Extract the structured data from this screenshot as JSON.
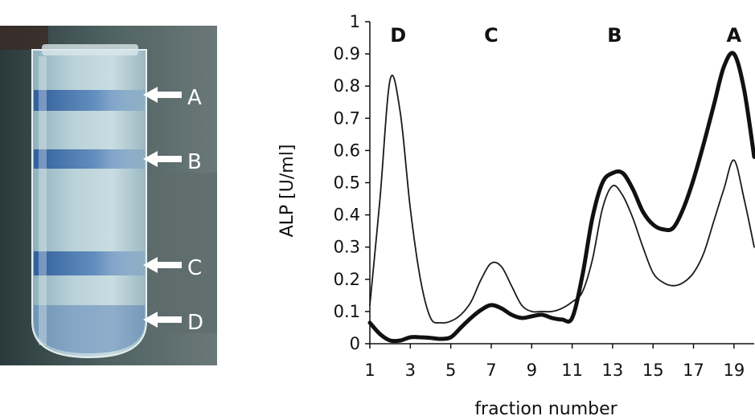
{
  "tube_photo": {
    "band_labels": [
      "A",
      "B",
      "C",
      "D"
    ]
  },
  "chart_data": {
    "type": "line",
    "title": "",
    "xlabel": "fraction number",
    "ylabel": "ALP [U/ml]",
    "xlim": [
      1,
      20
    ],
    "ylim": [
      0,
      1
    ],
    "x_ticks": [
      1,
      3,
      5,
      7,
      9,
      11,
      13,
      15,
      17,
      19
    ],
    "y_ticks": [
      0,
      0.1,
      0.2,
      0.3,
      0.4,
      0.5,
      0.6,
      0.7,
      0.8,
      0.9,
      1
    ],
    "y_tick_labels": [
      "0",
      "0.1",
      "0.2",
      "0.3",
      "0.4",
      "0.5",
      "0.6",
      "0.7",
      "0.8",
      "0.9",
      "1"
    ],
    "grid": false,
    "legend": "none",
    "peak_labels": [
      {
        "text": "D",
        "x": 2.4
      },
      {
        "text": "C",
        "x": 7.0
      },
      {
        "text": "B",
        "x": 13.1
      },
      {
        "text": "A",
        "x": 19.0
      }
    ],
    "series": [
      {
        "style": "thin",
        "color": "#1a1a1a",
        "x": [
          1,
          1.5,
          2,
          2.5,
          3,
          3.5,
          4,
          4.5,
          5,
          5.5,
          6,
          6.5,
          7,
          7.5,
          8,
          8.5,
          9,
          9.5,
          10,
          10.5,
          11,
          11.5,
          12,
          12.5,
          13,
          13.5,
          14,
          14.5,
          15,
          15.5,
          16,
          16.5,
          17,
          17.5,
          18,
          18.5,
          19,
          19.5,
          20
        ],
        "y": [
          0.12,
          0.45,
          0.82,
          0.72,
          0.42,
          0.2,
          0.08,
          0.065,
          0.07,
          0.09,
          0.13,
          0.2,
          0.25,
          0.24,
          0.18,
          0.12,
          0.1,
          0.1,
          0.1,
          0.11,
          0.13,
          0.16,
          0.26,
          0.42,
          0.49,
          0.46,
          0.39,
          0.3,
          0.22,
          0.19,
          0.18,
          0.19,
          0.22,
          0.28,
          0.38,
          0.48,
          0.57,
          0.45,
          0.3
        ]
      },
      {
        "style": "thick",
        "color": "#111111",
        "x": [
          1,
          1.5,
          2,
          2.5,
          3,
          3.5,
          4,
          4.5,
          5,
          5.5,
          6,
          6.5,
          7,
          7.5,
          8,
          8.5,
          9,
          9.5,
          10,
          10.5,
          11,
          11.5,
          12,
          12.5,
          13,
          13.5,
          14,
          14.5,
          15,
          15.5,
          16,
          16.5,
          17,
          17.5,
          18,
          18.5,
          19,
          19.5,
          20
        ],
        "y": [
          0.065,
          0.03,
          0.01,
          0.01,
          0.02,
          0.02,
          0.018,
          0.015,
          0.02,
          0.05,
          0.08,
          0.105,
          0.12,
          0.11,
          0.09,
          0.08,
          0.085,
          0.09,
          0.08,
          0.075,
          0.08,
          0.21,
          0.39,
          0.5,
          0.53,
          0.53,
          0.48,
          0.41,
          0.37,
          0.355,
          0.36,
          0.42,
          0.51,
          0.62,
          0.74,
          0.86,
          0.9,
          0.79,
          0.58
        ]
      }
    ]
  }
}
